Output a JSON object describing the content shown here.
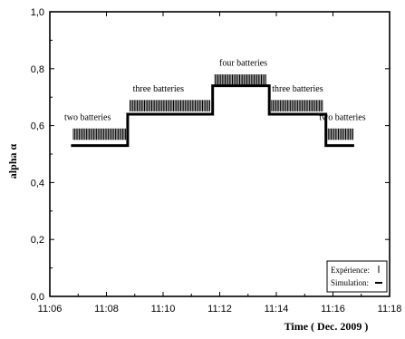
{
  "chart_data": {
    "type": "line",
    "title": "",
    "xlabel": "Time ( Dec. 2009 )",
    "ylabel": "alpha α",
    "xlim": [
      "11:06",
      "11:18"
    ],
    "ylim": [
      0.0,
      1.0
    ],
    "x_ticks": [
      "11:06",
      "11:08",
      "11:10",
      "11:12",
      "11:14",
      "11:16",
      "11:18"
    ],
    "y_ticks": [
      "0,0",
      "0,2",
      "0,4",
      "0,6",
      "0,8",
      "1,0"
    ],
    "grid": false,
    "legend": {
      "placement": "bottom-right",
      "entries": [
        {
          "label": "Expérience:",
          "marker": "|"
        },
        {
          "label": "Simulation:",
          "marker": "—"
        }
      ]
    },
    "series": [
      {
        "name": "Simulation:",
        "style": "step",
        "x": [
          "11:06:45",
          "11:08:45",
          "11:08:45",
          "11:11:45",
          "11:11:45",
          "11:13:45",
          "11:13:45",
          "11:15:45",
          "11:15:45",
          "11:16:45"
        ],
        "values": [
          0.53,
          0.53,
          0.64,
          0.64,
          0.74,
          0.74,
          0.64,
          0.64,
          0.53,
          0.53
        ]
      },
      {
        "name": "Expérience:",
        "style": "bars",
        "segments": [
          {
            "x_start": "11:06:50",
            "x_end": "11:08:45",
            "y_low": 0.55,
            "y_high": 0.59
          },
          {
            "x_start": "11:08:50",
            "x_end": "11:11:40",
            "y_low": 0.65,
            "y_high": 0.69
          },
          {
            "x_start": "11:11:50",
            "x_end": "11:13:40",
            "y_low": 0.74,
            "y_high": 0.78
          },
          {
            "x_start": "11:13:50",
            "x_end": "11:15:40",
            "y_low": 0.65,
            "y_high": 0.69
          },
          {
            "x_start": "11:15:50",
            "x_end": "11:16:45",
            "y_low": 0.55,
            "y_high": 0.59
          }
        ]
      }
    ],
    "annotations": [
      {
        "text": "two batteries",
        "x": "11:07:20",
        "y": 0.62
      },
      {
        "text": "three batteries",
        "x": "11:09:50",
        "y": 0.72
      },
      {
        "text": "four batteries",
        "x": "11:12:50",
        "y": 0.81
      },
      {
        "text": "three batteries",
        "x": "11:14:45",
        "y": 0.72
      },
      {
        "text": "two batteries",
        "x": "11:16:20",
        "y": 0.62
      }
    ]
  }
}
